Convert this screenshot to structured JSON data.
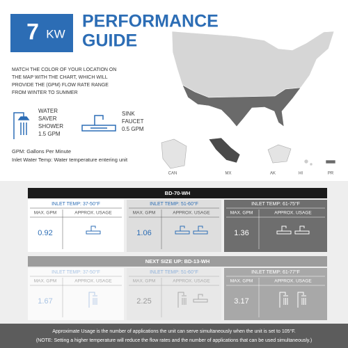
{
  "header": {
    "badge_number": "7",
    "badge_unit": "KW",
    "title_line1": "PERFORMANCE",
    "title_line2": "GUIDE"
  },
  "instructions": [
    "MATCH THE COLOR OF YOUR LOCATION ON",
    "THE MAP WITH THE CHART, WHICH WILL",
    "PROVIDE THE  (GPM) FLOW RATE RANGE",
    "FROM WINTER TO SUMMER"
  ],
  "fixtures": [
    {
      "lines": [
        "WATER",
        "SAVER",
        "SHOWER",
        "1.5 GPM"
      ]
    },
    {
      "lines": [
        "SINK",
        "FAUCET",
        "0.5 GPM"
      ]
    }
  ],
  "notes": [
    "GPM: Gallons Per Minute",
    "Inlet Water Temp: Water temperature entering unit"
  ],
  "map_labels": [
    "CAN",
    "MX",
    "AK",
    "HI",
    "PR"
  ],
  "tables": [
    {
      "model": "BD-70-WH",
      "columns": [
        {
          "inlet": "INLET TEMP: 37-50°F",
          "max_label": "MAX. GPM",
          "usage_label": "APPROX. USAGE",
          "gpm": "0.92"
        },
        {
          "inlet": "INLET TEMP: 51-60°F",
          "max_label": "MAX. GPM",
          "usage_label": "APPROX. USAGE",
          "gpm": "1.06"
        },
        {
          "inlet": "INLET TEMP: 61-75°F",
          "max_label": "MAX. GPM",
          "usage_label": "APPROX. USAGE",
          "gpm": "1.36"
        }
      ]
    },
    {
      "model": "NEXT SIZE UP: BD-13-WH",
      "columns": [
        {
          "inlet": "INLET TEMP: 37-50°F",
          "max_label": "MAX. GPM",
          "usage_label": "APPROX. USAGE",
          "gpm": "1.67"
        },
        {
          "inlet": "INLET TEMP: 51-60°F",
          "max_label": "MAX. GPM",
          "usage_label": "APPROX. USAGE",
          "gpm": "2.25"
        },
        {
          "inlet": "INLET TEMP: 61-77°F",
          "max_label": "MAX. GPM",
          "usage_label": "APPROX. USAGE",
          "gpm": "3.17"
        }
      ]
    }
  ],
  "footer": [
    "Approximate Usage is the number of applications the unit can serve simultaneously when the unit is set to 105°F.",
    "(NOTE: Setting a higher temperature will reduce the flow rates and the number of applications that can be used simultaneously.)"
  ]
}
